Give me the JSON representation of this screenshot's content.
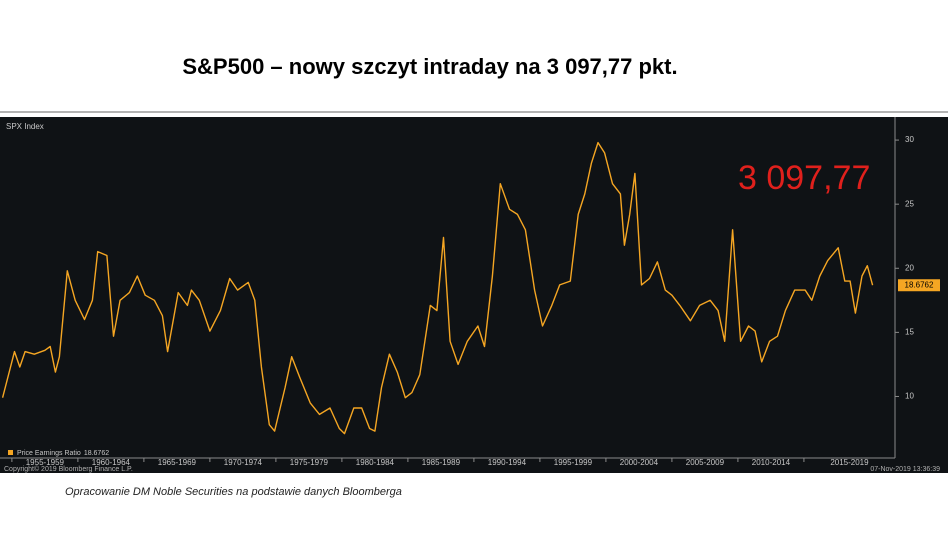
{
  "chart_data": {
    "type": "line",
    "title": "S&P500 – nowy szczyt intraday na 3 097,77 pkt.",
    "panel_label": "SPX Index",
    "annotation": "3 097,77",
    "copyright": "Copyright© 2019 Bloomberg Finance L.P.",
    "timestamp": "07-Nov-2019 13:36:39",
    "source_note": "Opracowanie DM Noble Securities na podstawie danych Bloomberga",
    "xlim": [
      1954.1,
      2021.9
    ],
    "ylim": [
      5.2,
      31.8
    ],
    "yticks": [
      10,
      15,
      20,
      25,
      30
    ],
    "xticks": [
      {
        "value": 1955,
        "label": "1955-1959"
      },
      {
        "value": 1960,
        "label": "1960-1964"
      },
      {
        "value": 1965,
        "label": "1965-1969"
      },
      {
        "value": 1970,
        "label": "1970-1974"
      },
      {
        "value": 1975,
        "label": "1975-1979"
      },
      {
        "value": 1980,
        "label": "1980-1984"
      },
      {
        "value": 1985,
        "label": "1985-1989"
      },
      {
        "value": 1990,
        "label": "1990-1994"
      },
      {
        "value": 1995,
        "label": "1995-1999"
      },
      {
        "value": 2000,
        "label": "2000-2004"
      },
      {
        "value": 2005,
        "label": "2005-2009"
      },
      {
        "value": 2010,
        "label": "2010-2014"
      },
      {
        "value": 2015,
        "label": "2015-2019"
      }
    ],
    "x": [
      1954.3,
      1955.2,
      1955.6,
      1956,
      1956.7,
      1957.5,
      1957.9,
      1958.3,
      1958.6,
      1959.2,
      1959.8,
      1960.5,
      1961.1,
      1961.5,
      1962.2,
      1962.7,
      1963.2,
      1963.9,
      1964.5,
      1965.1,
      1965.8,
      1966.4,
      1966.8,
      1967.6,
      1968.3,
      1968.6,
      1969.2,
      1970,
      1970.8,
      1971.5,
      1972.1,
      1972.9,
      1973.4,
      1973.9,
      1974.5,
      1974.9,
      1975.7,
      1976.2,
      1976.8,
      1977.6,
      1978.3,
      1979.1,
      1979.8,
      1980.2,
      1980.9,
      1981.5,
      1982.1,
      1982.5,
      1983,
      1983.6,
      1984.2,
      1984.8,
      1985.3,
      1985.9,
      1986.7,
      1987.2,
      1987.7,
      1988.2,
      1988.8,
      1989.5,
      1990.3,
      1990.8,
      1991.4,
      1992,
      1992.7,
      1993.3,
      1993.9,
      1994.6,
      1995.2,
      1995.9,
      1996.5,
      1997.3,
      1997.9,
      1998.4,
      1998.9,
      1999.4,
      1999.9,
      2000.5,
      2001.1,
      2001.4,
      2001.8,
      2002.2,
      2002.7,
      2003.3,
      2003.9,
      2004.5,
      2005,
      2005.6,
      2006.4,
      2007.1,
      2007.9,
      2008.5,
      2009,
      2009.6,
      2010.2,
      2010.8,
      2011.3,
      2011.8,
      2012.4,
      2013,
      2013.6,
      2014.3,
      2015.1,
      2015.6,
      2016.2,
      2016.8,
      2017.6,
      2018.1,
      2018.5,
      2018.9,
      2019.4,
      2019.8,
      2020.2
    ],
    "series": [
      {
        "name": "Price Earnings Ratio",
        "color": "#f5a623",
        "values": [
          9.9,
          13.5,
          12.3,
          13.5,
          13.3,
          13.6,
          13.9,
          11.9,
          13.1,
          19.8,
          17.5,
          16.0,
          17.5,
          21.3,
          21.0,
          14.7,
          17.5,
          18.1,
          19.4,
          17.9,
          17.5,
          16.3,
          13.5,
          18.1,
          17.1,
          18.3,
          17.5,
          15.1,
          16.7,
          19.2,
          18.3,
          18.9,
          17.5,
          12.3,
          7.8,
          7.3,
          10.7,
          13.1,
          11.5,
          9.5,
          8.6,
          9.1,
          7.5,
          7.1,
          9.1,
          9.1,
          7.5,
          7.3,
          10.7,
          13.3,
          11.9,
          9.9,
          10.3,
          11.7,
          17.1,
          16.7,
          22.4,
          14.3,
          12.5,
          14.3,
          15.5,
          13.9,
          19.4,
          26.6,
          24.6,
          24.2,
          23.0,
          18.3,
          15.5,
          17.1,
          18.7,
          19.0,
          24.2,
          25.8,
          28.2,
          29.8,
          29.0,
          26.6,
          25.8,
          21.8,
          24.2,
          27.4,
          18.7,
          19.2,
          20.5,
          18.3,
          17.9,
          17.1,
          15.9,
          17.1,
          17.5,
          16.7,
          14.3,
          23.0,
          14.3,
          15.5,
          15.1,
          12.7,
          14.3,
          14.7,
          16.7,
          18.3,
          18.3,
          17.5,
          19.4,
          20.6,
          21.6,
          19.0,
          19.0,
          16.5,
          19.4,
          20.2,
          18.6762
        ]
      }
    ]
  }
}
